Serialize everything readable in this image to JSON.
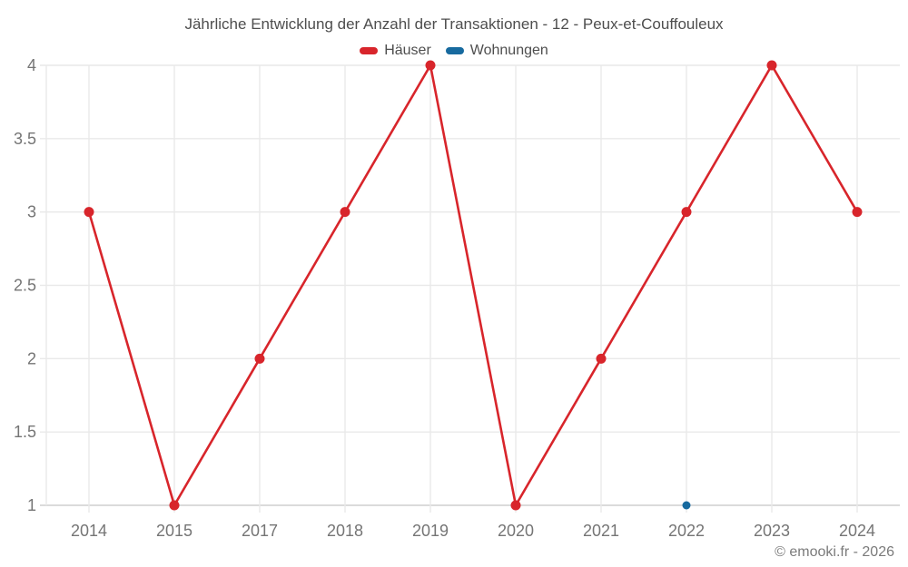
{
  "title": "Jährliche Entwicklung der Anzahl der Transaktionen - 12 - Peux-et-Couffouleux",
  "legend": [
    {
      "label": "Häuser",
      "color": "#d8252b"
    },
    {
      "label": "Wohnungen",
      "color": "#176a9f"
    }
  ],
  "watermark": "© emooki.fr - 2026",
  "colors": {
    "grid": "#e9e9e9",
    "axis": "#cfcfcf",
    "tick_label": "#757575"
  },
  "chart_data": {
    "type": "line",
    "categories": [
      "2014",
      "2015",
      "2017",
      "2018",
      "2019",
      "2020",
      "2021",
      "2022",
      "2023",
      "2024"
    ],
    "series": [
      {
        "name": "Häuser",
        "color": "#d8252b",
        "values": [
          3,
          1,
          2,
          3,
          4,
          1,
          2,
          3,
          4,
          3
        ]
      },
      {
        "name": "Wohnungen",
        "color": "#176a9f",
        "values": [
          null,
          null,
          null,
          null,
          null,
          null,
          null,
          1,
          null,
          null
        ]
      }
    ],
    "title": "Jährliche Entwicklung der Anzahl der Transaktionen - 12 - Peux-et-Couffouleux",
    "xlabel": "",
    "ylabel": "",
    "ylim": [
      1,
      4
    ],
    "yticks": [
      1,
      1.5,
      2,
      2.5,
      3,
      3.5,
      4
    ],
    "grid": true,
    "legend_position": "top"
  }
}
